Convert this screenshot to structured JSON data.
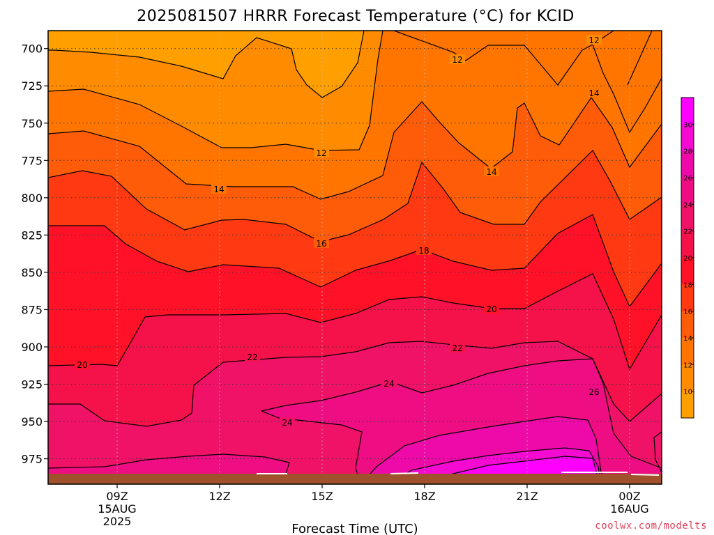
{
  "chart_data": {
    "type": "heatmap",
    "title": "2025081507 HRRR Forecast Temperature (°C) for KCID",
    "xlabel": "Forecast Time (UTC)",
    "ylabel": "",
    "x_ticks": [
      {
        "label": "09Z",
        "sub": [
          "15AUG",
          "2025"
        ]
      },
      {
        "label": "12Z",
        "sub": []
      },
      {
        "label": "15Z",
        "sub": []
      },
      {
        "label": "18Z",
        "sub": []
      },
      {
        "label": "21Z",
        "sub": []
      },
      {
        "label": "00Z",
        "sub": [
          "16AUG"
        ]
      }
    ],
    "y_ticks": [
      "700",
      "725",
      "750",
      "775",
      "800",
      "825",
      "850",
      "875",
      "900",
      "925",
      "950",
      "975"
    ],
    "y_values": [
      700,
      725,
      750,
      775,
      800,
      825,
      850,
      875,
      900,
      925,
      950,
      975
    ],
    "ylim": [
      688,
      992
    ],
    "contour_labels": [
      "12",
      "12",
      "12",
      "12",
      "14",
      "14",
      "14",
      "16",
      "18",
      "20",
      "20",
      "22",
      "22",
      "24",
      "24",
      "26"
    ],
    "contour_levels": [
      10,
      12,
      14,
      16,
      18,
      20,
      22,
      24,
      26,
      28,
      30
    ],
    "colorbar": {
      "ticks": [
        "10",
        "12",
        "14",
        "16",
        "18",
        "20",
        "22",
        "24",
        "26",
        "28",
        "30"
      ],
      "colors": [
        "#ffa000",
        "#ff8c00",
        "#ff7500",
        "#ff5c0a",
        "#ff3a12",
        "#ff1228",
        "#f5124a",
        "#f01266",
        "#ee0d82",
        "#ee0aa8",
        "#f50ad2",
        "#ff00ff"
      ]
    },
    "grid": true,
    "terrain_color": "#a0522d",
    "credit": "coolwx.com/modelts"
  }
}
